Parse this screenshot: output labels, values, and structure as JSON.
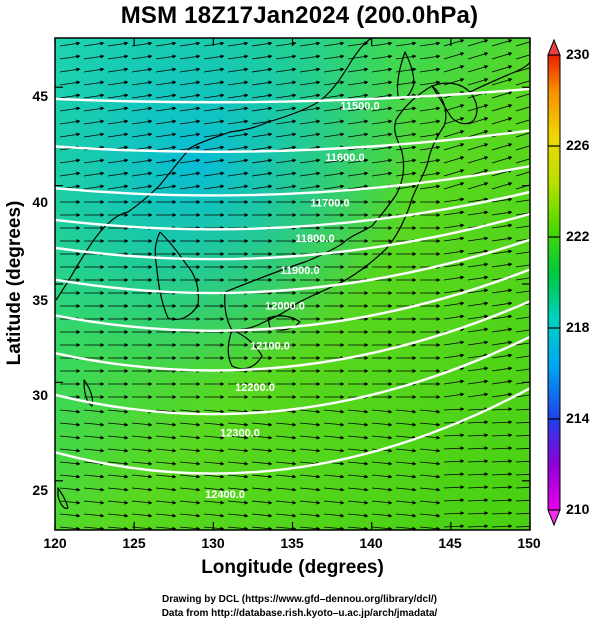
{
  "chart_data": {
    "type": "map",
    "title": "MSM 18Z17Jan2024 (200.0hPa)",
    "xlabel": "Longitude (degrees)",
    "ylabel": "Latitude  (degrees)",
    "xlim": [
      120,
      150
    ],
    "ylim": [
      22.5,
      47.5
    ],
    "x_ticks": [
      "120",
      "125",
      "130",
      "135",
      "140",
      "145",
      "150"
    ],
    "y_ticks": [
      "25",
      "30",
      "35",
      "40",
      "45"
    ],
    "colorbar": {
      "range": [
        210,
        230
      ],
      "ticks": [
        "210",
        "214",
        "218",
        "222",
        "226",
        "230"
      ],
      "colors": [
        "#e800e8",
        "#9000d8",
        "#2040e8",
        "#00a8f0",
        "#00d0c0",
        "#00c840",
        "#50d800",
        "#b8e000",
        "#f0d800",
        "#f89000",
        "#e82000"
      ]
    },
    "contours": [
      {
        "label": "11500.0",
        "lat": 44.1
      },
      {
        "label": "11600.0",
        "lat": 41.5
      },
      {
        "label": "11700.0",
        "lat": 39.2
      },
      {
        "label": "11800.0",
        "lat": 37.4
      },
      {
        "label": "11900.0",
        "lat": 35.8
      },
      {
        "label": "12000.0",
        "lat": 34.0
      },
      {
        "label": "12100.0",
        "lat": 32.0
      },
      {
        "label": "12200.0",
        "lat": 29.9
      },
      {
        "label": "12300.0",
        "lat": 27.6
      },
      {
        "label": "12400.0",
        "lat": 24.5
      }
    ],
    "wind": "westerly"
  },
  "credit": {
    "line1": "Drawing by DCL (https://www.gfd–dennou.org/library/dcl/)",
    "line2": "Data from http://database.rish.kyoto–u.ac.jp/arch/jmadata/"
  }
}
